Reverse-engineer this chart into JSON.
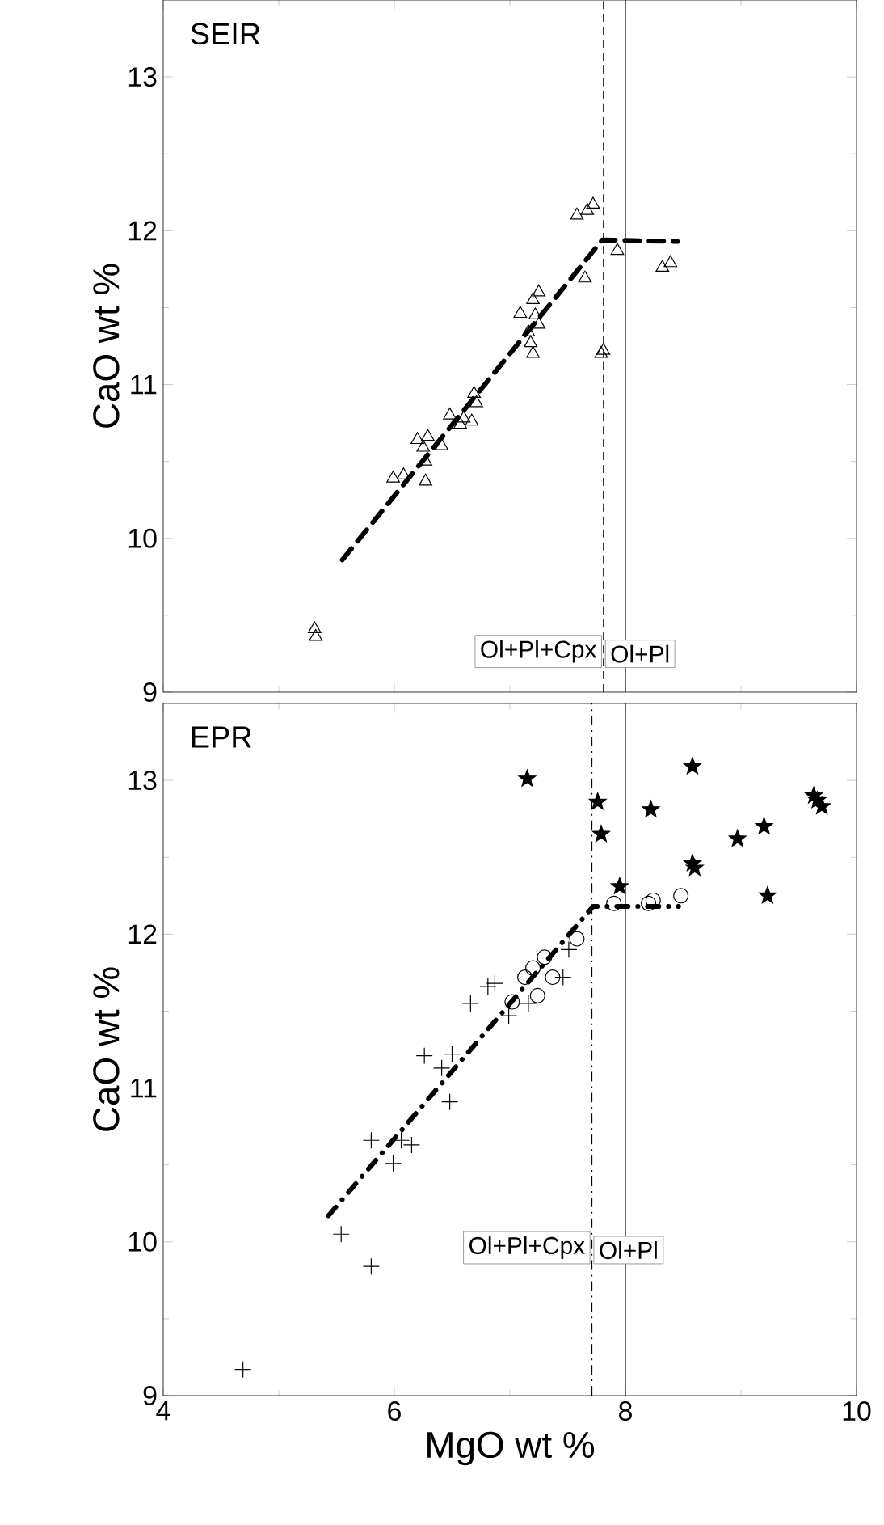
{
  "chart_data": [
    {
      "type": "scatter",
      "title": "SEIR",
      "ylabel": "CaO wt %",
      "tick_labels": "y",
      "xlim": [
        4,
        10
      ],
      "ylim": [
        9,
        13.5
      ],
      "xticks": [
        4,
        {
          "value": 5,
          "label": null
        },
        6,
        {
          "value": 7,
          "label": null
        },
        8,
        {
          "value": 9,
          "label": null
        },
        10
      ],
      "yticks": [
        9,
        {
          "value": 9.5,
          "label": null
        },
        10,
        {
          "value": 10.5,
          "label": null
        },
        11,
        {
          "value": 11.5,
          "label": null
        },
        12,
        {
          "value": 12.5,
          "label": null
        },
        13
      ],
      "ref_lines": [
        {
          "axis": "x",
          "value": 7.81,
          "line_style": "dashed"
        },
        {
          "axis": "x",
          "value": 8.0,
          "line_style": "solid"
        }
      ],
      "annotations": [
        "Ol+Pl+Cpx",
        "Ol+Pl"
      ],
      "series": [
        {
          "type": "scatter",
          "marker": "triangle",
          "color": "#000000",
          "x": [
            5.31,
            5.32,
            7.58,
            7.67,
            7.72,
            7.93,
            8.32,
            8.39,
            7.65,
            7.81,
            7.79,
            7.25,
            7.2,
            7.09,
            7.22,
            7.25,
            7.16,
            7.18,
            7.2,
            6.69,
            6.71,
            6.48,
            6.6,
            6.67,
            6.57,
            6.2,
            6.29,
            6.41,
            6.25,
            6.27,
            5.99,
            6.08,
            6.27
          ],
          "values": [
            9.41,
            9.36,
            12.1,
            12.13,
            12.17,
            11.87,
            11.76,
            11.79,
            11.69,
            11.22,
            11.2,
            11.6,
            11.55,
            11.46,
            11.45,
            11.39,
            11.34,
            11.27,
            11.2,
            10.94,
            10.88,
            10.8,
            10.78,
            10.76,
            10.74,
            10.64,
            10.66,
            10.6,
            10.59,
            10.5,
            10.39,
            10.41,
            10.37
          ]
        },
        {
          "type": "line",
          "marker": "none",
          "line_style": "dashed",
          "color": "#000000",
          "x": [
            5.55,
            7.8,
            8.45
          ],
          "values": [
            9.86,
            11.94,
            11.93
          ]
        }
      ]
    },
    {
      "type": "scatter",
      "title": "EPR",
      "ylabel": "CaO wt %",
      "xlabel": "MgO wt %",
      "xlim": [
        4,
        10
      ],
      "ylim": [
        9,
        13.5
      ],
      "xticks": [
        4,
        {
          "value": 5,
          "label": null
        },
        6,
        {
          "value": 7,
          "label": null
        },
        8,
        {
          "value": 9,
          "label": null
        },
        10
      ],
      "yticks": [
        9,
        {
          "value": 9.5,
          "label": null
        },
        10,
        {
          "value": 10.5,
          "label": null
        },
        11,
        {
          "value": 11.5,
          "label": null
        },
        12,
        {
          "value": 12.5,
          "label": null
        },
        13
      ],
      "ref_lines": [
        {
          "axis": "x",
          "value": 7.71,
          "line_style": "dashdot"
        },
        {
          "axis": "x",
          "value": 8.0,
          "line_style": "solid"
        }
      ],
      "annotations": [
        "Ol+Pl+Cpx",
        "Ol+Pl"
      ],
      "series": [
        {
          "type": "scatter",
          "marker": "star",
          "color": "#000000",
          "x": [
            7.15,
            8.58,
            7.76,
            8.22,
            7.79,
            8.97,
            9.2,
            9.63,
            9.66,
            9.7,
            8.58,
            8.6,
            7.95,
            9.23
          ],
          "values": [
            13.01,
            13.09,
            12.86,
            12.81,
            12.65,
            12.62,
            12.7,
            12.9,
            12.87,
            12.83,
            12.46,
            12.43,
            12.31,
            12.25
          ]
        },
        {
          "type": "scatter",
          "marker": "circle",
          "color": "#000000",
          "x": [
            7.9,
            8.2,
            8.24,
            8.48,
            7.58,
            7.3,
            7.2,
            7.13,
            7.37,
            7.24,
            7.02
          ],
          "values": [
            12.2,
            12.2,
            12.22,
            12.25,
            11.97,
            11.85,
            11.78,
            11.72,
            11.72,
            11.6,
            11.56
          ]
        },
        {
          "type": "scatter",
          "marker": "cross",
          "color": "#000000",
          "x": [
            4.69,
            5.54,
            5.8,
            5.8,
            5.99,
            6.06,
            6.15,
            6.26,
            6.5,
            6.41,
            6.48,
            6.66,
            6.81,
            6.87,
            6.99,
            7.16,
            7.46,
            7.51
          ],
          "values": [
            9.17,
            10.05,
            9.84,
            10.66,
            10.51,
            10.66,
            10.63,
            11.21,
            11.22,
            11.13,
            10.91,
            11.55,
            11.66,
            11.68,
            11.47,
            11.55,
            11.72,
            11.9
          ]
        },
        {
          "type": "line",
          "marker": "none",
          "line_style": "dashdot",
          "color": "#000000",
          "x": [
            5.43,
            7.72,
            8.46
          ],
          "values": [
            10.17,
            12.18,
            12.18
          ]
        }
      ]
    }
  ]
}
